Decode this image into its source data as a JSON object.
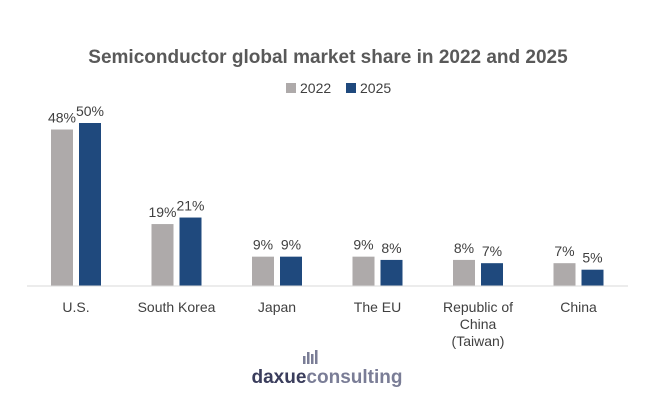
{
  "chart_data": {
    "type": "bar",
    "title": "Semiconductor global market share in 2022 and 2025",
    "categories": [
      [
        "U.S."
      ],
      [
        "South Korea"
      ],
      [
        "Japan"
      ],
      [
        "The EU"
      ],
      [
        "Republic of",
        "China",
        "(Taiwan)"
      ],
      [
        "China"
      ]
    ],
    "series": [
      {
        "name": "2022",
        "color": "#aeaaaa",
        "values": [
          48,
          19,
          9,
          9,
          8,
          7
        ],
        "labels": [
          "48%",
          "19%",
          "9%",
          "9%",
          "8%",
          "7%"
        ]
      },
      {
        "name": "2025",
        "color": "#1f497d",
        "values": [
          50,
          21,
          9,
          8,
          7,
          5
        ],
        "labels": [
          "50%",
          "21%",
          "9%",
          "8%",
          "7%",
          "5%"
        ]
      }
    ],
    "ylim": [
      0,
      50
    ],
    "grid": false,
    "legend": "top-center"
  },
  "watermark": {
    "part1": "daxue",
    "part2": "consulting"
  }
}
